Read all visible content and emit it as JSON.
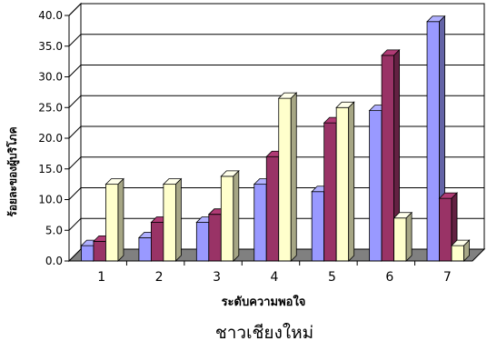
{
  "chart_data": {
    "type": "bar",
    "title": "",
    "subtitle": "",
    "caption": "ชาวเชียงใหม่",
    "xlabel": "ระดับความพอใจ",
    "ylabel": "ร้อยละของผู้บริโภค",
    "categories": [
      "1",
      "2",
      "3",
      "4",
      "5",
      "6",
      "7"
    ],
    "ylim": [
      0,
      40
    ],
    "y_ticks": [
      "0.0",
      "5.0",
      "10.0",
      "15.0",
      "20.0",
      "25.0",
      "30.0",
      "35.0",
      "40.0"
    ],
    "grid": true,
    "legend": "none",
    "style": "3d-clustered-column",
    "series": [
      {
        "values": [
          2.5,
          3.8,
          6.3,
          12.5,
          11.3,
          24.5,
          39.0
        ],
        "color": "#9999FF"
      },
      {
        "values": [
          3.2,
          6.3,
          7.6,
          17.0,
          22.5,
          33.5,
          10.2
        ],
        "color": "#993366"
      },
      {
        "values": [
          12.5,
          12.5,
          13.8,
          26.5,
          25.0,
          7.0,
          2.5
        ],
        "color": "#FFFFCC"
      }
    ]
  },
  "colors": {
    "plot_wall": "#FFFFFF",
    "floor": "#808080",
    "grid": "#000000",
    "outline": "#000000"
  }
}
